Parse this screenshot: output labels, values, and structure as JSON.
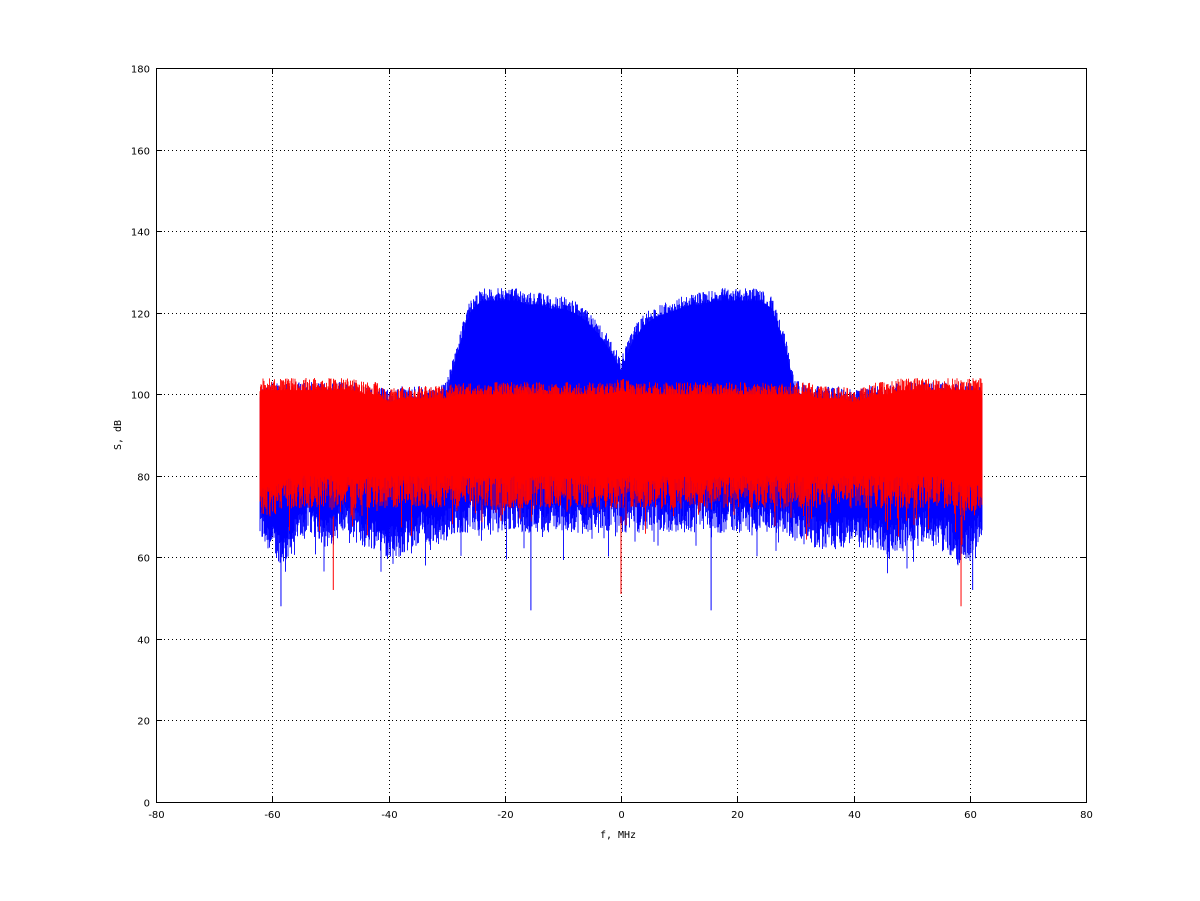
{
  "chart_data": {
    "type": "line",
    "xlabel": "f, MHz",
    "ylabel": "S, dB",
    "xlim": [
      -80,
      80
    ],
    "ylim": [
      0,
      180
    ],
    "xticks": [
      -80,
      -60,
      -40,
      -20,
      0,
      20,
      40,
      60,
      80
    ],
    "yticks": [
      0,
      20,
      40,
      60,
      80,
      100,
      120,
      140,
      160,
      180
    ],
    "grid": true,
    "x": [
      -62,
      -60,
      -58,
      -56,
      -54,
      -52,
      -50,
      -48,
      -46,
      -44,
      -42,
      -40,
      -38,
      -36,
      -34,
      -32,
      -30,
      -28,
      -26,
      -24,
      -22,
      -20,
      -18,
      -16,
      -14,
      -12,
      -10,
      -8,
      -6,
      -4,
      -2,
      0,
      2,
      4,
      6,
      8,
      10,
      12,
      14,
      16,
      18,
      20,
      22,
      24,
      26,
      28,
      30,
      32,
      34,
      36,
      38,
      40,
      42,
      44,
      46,
      48,
      50,
      52,
      54,
      56,
      58,
      60,
      62
    ],
    "series": [
      {
        "color": "#0000ff",
        "upper": [
          102,
          103,
          103,
          103,
          103,
          103,
          103,
          103,
          103,
          102,
          102,
          101,
          102,
          102,
          102,
          102,
          103,
          114,
          123,
          126,
          126,
          126,
          126,
          125,
          125,
          124,
          124,
          123,
          121,
          118,
          114,
          109,
          116,
          120,
          122,
          123,
          124,
          125,
          125,
          126,
          126,
          126,
          126,
          126,
          124,
          116,
          104,
          102,
          102,
          102,
          102,
          101,
          102,
          102,
          102,
          103,
          103,
          103,
          103,
          103,
          103,
          103,
          102
        ],
        "lower": [
          64,
          60,
          58,
          62,
          66,
          64,
          62,
          66,
          64,
          62,
          62,
          60,
          60,
          62,
          64,
          62,
          64,
          66,
          66,
          66,
          66,
          66,
          66,
          66,
          66,
          66,
          66,
          66,
          66,
          66,
          66,
          66,
          66,
          66,
          66,
          66,
          66,
          66,
          66,
          66,
          66,
          66,
          66,
          66,
          66,
          66,
          64,
          62,
          62,
          62,
          62,
          62,
          62,
          62,
          60,
          62,
          62,
          64,
          62,
          62,
          58,
          60,
          64
        ]
      },
      {
        "color": "#ff0000",
        "upper": [
          104,
          104,
          104,
          104,
          104,
          104,
          104,
          104,
          104,
          103,
          103,
          101,
          102,
          102,
          102,
          102,
          102,
          103,
          103,
          103,
          103,
          103,
          103,
          103,
          103,
          103,
          103,
          103,
          103,
          103,
          103,
          104,
          103,
          103,
          103,
          103,
          103,
          103,
          103,
          103,
          103,
          103,
          103,
          103,
          103,
          103,
          103,
          103,
          102,
          102,
          102,
          101,
          102,
          103,
          103,
          104,
          104,
          104,
          104,
          104,
          104,
          104,
          104
        ],
        "lower": [
          70,
          70,
          72,
          72,
          72,
          72,
          72,
          72,
          72,
          72,
          72,
          72,
          72,
          72,
          72,
          72,
          72,
          72,
          72,
          72,
          72,
          72,
          72,
          72,
          72,
          72,
          72,
          72,
          72,
          72,
          72,
          72,
          72,
          72,
          72,
          72,
          72,
          72,
          72,
          72,
          72,
          72,
          72,
          72,
          72,
          72,
          72,
          72,
          72,
          72,
          72,
          72,
          72,
          72,
          72,
          72,
          72,
          72,
          72,
          72,
          70,
          70,
          70
        ]
      }
    ],
    "min_spikes": [
      {
        "x": -58.5,
        "y": 48
      },
      {
        "x": -49.5,
        "y": 52
      },
      {
        "x": -15.5,
        "y": 47
      },
      {
        "x": 0,
        "y": 51
      },
      {
        "x": 15.5,
        "y": 47
      },
      {
        "x": 58.5,
        "y": 48
      },
      {
        "x": 60.5,
        "y": 52
      }
    ]
  }
}
